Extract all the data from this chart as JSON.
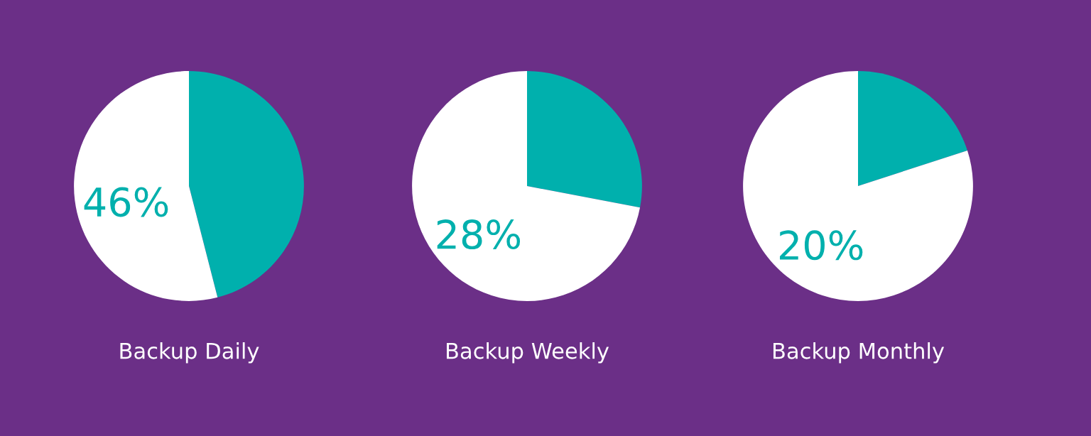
{
  "chart_data": [
    {
      "type": "pie",
      "title": "Backup Daily",
      "categories": [
        null,
        null
      ],
      "values": [
        46,
        54
      ],
      "colors": [
        "#00b0ad",
        "#ffffff"
      ],
      "annotations": [
        "46%"
      ]
    },
    {
      "type": "pie",
      "title": "Backup Weekly",
      "categories": [
        null,
        null
      ],
      "values": [
        28,
        72
      ],
      "colors": [
        "#00b0ad",
        "#ffffff"
      ],
      "annotations": [
        "28%"
      ]
    },
    {
      "type": "pie",
      "title": "Backup Monthly",
      "categories": [
        null,
        null
      ],
      "values": [
        20,
        80
      ],
      "colors": [
        "#00b0ad",
        "#ffffff"
      ],
      "annotations": [
        "20%"
      ]
    }
  ]
}
